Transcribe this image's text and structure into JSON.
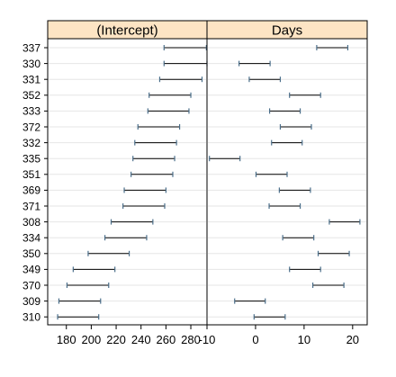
{
  "chart_data": {
    "type": "interval",
    "colors": {
      "strip_bg": "#fde4c4",
      "panel_border": "#000000",
      "grid": "#e6e6e6",
      "interval": "#000000",
      "end_tick": "#4a6e8a"
    },
    "grid": true,
    "categories": [
      "337",
      "330",
      "331",
      "352",
      "333",
      "372",
      "332",
      "335",
      "351",
      "369",
      "371",
      "308",
      "334",
      "350",
      "349",
      "370",
      "309",
      "310"
    ],
    "panels": [
      {
        "name": "(Intercept)",
        "xlim": [
          165,
          293
        ],
        "ticks": [
          "180",
          "200",
          "220",
          "240",
          "260",
          "280"
        ],
        "intervals": [
          [
            258.5,
            292.5
          ],
          [
            258.5,
            293.0
          ],
          [
            255.0,
            289.0
          ],
          [
            246.5,
            280.0
          ],
          [
            245.5,
            278.5
          ],
          [
            237.5,
            271.0
          ],
          [
            235.0,
            268.5
          ],
          [
            233.5,
            267.0
          ],
          [
            232.0,
            265.5
          ],
          [
            226.5,
            260.0
          ],
          [
            225.5,
            259.0
          ],
          [
            216.0,
            249.5
          ],
          [
            211.0,
            244.5
          ],
          [
            197.5,
            230.5
          ],
          [
            185.5,
            219.0
          ],
          [
            180.5,
            214.0
          ],
          [
            174.0,
            207.5
          ],
          [
            173.0,
            206.0
          ]
        ]
      },
      {
        "name": "Days",
        "xlim": [
          -10,
          23
        ],
        "ticks": [
          "-10",
          "0",
          "10",
          "20"
        ],
        "intervals": [
          [
            12.6,
            19.0
          ],
          [
            -3.4,
            3.0
          ],
          [
            -1.3,
            5.1
          ],
          [
            7.0,
            13.4
          ],
          [
            2.9,
            9.2
          ],
          [
            5.1,
            11.5
          ],
          [
            3.3,
            9.6
          ],
          [
            -9.5,
            -3.2
          ],
          [
            0.1,
            6.5
          ],
          [
            4.9,
            11.3
          ],
          [
            2.8,
            9.2
          ],
          [
            15.2,
            21.5
          ],
          [
            5.6,
            12.0
          ],
          [
            12.9,
            19.3
          ],
          [
            7.0,
            13.4
          ],
          [
            11.8,
            18.2
          ],
          [
            -4.3,
            2.0
          ],
          [
            -0.3,
            6.1
          ]
        ]
      }
    ]
  }
}
